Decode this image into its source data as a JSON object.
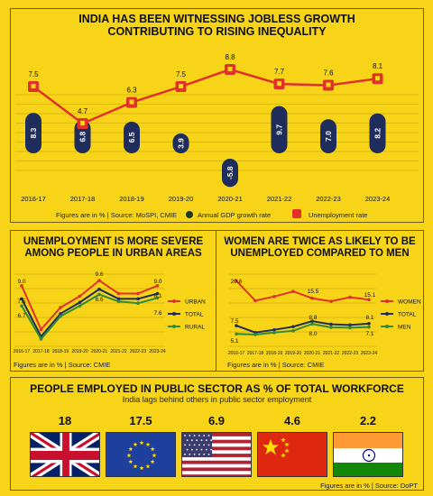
{
  "top": {
    "title_line1": "INDIA HAS BEEN WITNESSING JOBLESS GROWTH",
    "title_line2": "CONTRIBUTING TO RISING INEQUALITY",
    "source": "Figures are in % | Source: MoSPI, CMIE",
    "legend_gdp": "Annual GDP growth rate",
    "legend_unemp": "Unemployment rate"
  },
  "urban": {
    "title_line1": "UNEMPLOYMENT IS MORE SEVERE",
    "title_line2": "AMONG PEOPLE IN URBAN AREAS",
    "source": "Figures are in % | Source: CMIE"
  },
  "women": {
    "title_line1": "WOMEN ARE TWICE AS LIKELY TO BE",
    "title_line2": "UNEMPLOYED COMPARED TO MEN"
  },
  "public": {
    "title": "PEOPLE EMPLOYED IN PUBLIC SECTOR AS % OF TOTAL WORKFORCE",
    "subtitle": "India lags behind others in public sector employment",
    "source": "Figures are in % | Source: DoPT"
  },
  "chart_data": [
    {
      "type": "bar",
      "title": "INDIA HAS BEEN WITNESSING JOBLESS GROWTH CONTRIBUTING TO RISING INEQUALITY",
      "categories": [
        "2016-17",
        "2017-18",
        "2018-19",
        "2019-20",
        "2020-21",
        "2021-22",
        "2022-23",
        "2023-24"
      ],
      "series": [
        {
          "name": "Annual GDP growth rate",
          "type": "bar",
          "values": [
            8.3,
            6.8,
            6.5,
            3.9,
            -5.8,
            9.7,
            7.0,
            8.2
          ],
          "labels": [
            "8.3",
            "6.8",
            "6.5",
            "3.9",
            "-5.8",
            "9.7",
            "7.0",
            "8.2"
          ],
          "color": "#1f2d5c"
        },
        {
          "name": "Unemployment rate",
          "type": "line",
          "values": [
            7.5,
            4.7,
            6.3,
            7.5,
            8.8,
            7.7,
            7.6,
            8.1
          ],
          "labels": [
            "7.5",
            "4.7",
            "6.3",
            "7.5",
            "8.8",
            "7.7",
            "7.6",
            "8.1"
          ],
          "color": "#e0322a"
        }
      ]
    },
    {
      "type": "line",
      "x": [
        "2016-17",
        "2017-18",
        "2018-19",
        "2019-20",
        "2020-21",
        "2021-22",
        "2022-23",
        "2023-24"
      ],
      "series": [
        {
          "name": "URBAN",
          "values": [
            9.0,
            4.0,
            6.5,
            7.8,
            9.6,
            8.1,
            8.1,
            9.0
          ],
          "color": "#e0322a"
        },
        {
          "name": "TOTAL",
          "values": [
            7.5,
            3.2,
            5.8,
            7.1,
            8.6,
            7.5,
            7.5,
            8.1
          ],
          "color": "#1f2d5c"
        },
        {
          "name": "RURAL",
          "values": [
            6.7,
            2.9,
            5.5,
            6.7,
            8.0,
            7.2,
            7.0,
            7.6
          ],
          "color": "#2e8b3a"
        }
      ],
      "labels": {
        "start_top": "9.0",
        "start_mid": "7.5",
        "start_low": "6.7",
        "peak_top": "9.6",
        "peak_low": "8.6",
        "end_top": "9.0",
        "end_mid": "8.1",
        "end_low": "7.6"
      },
      "legend": "right"
    },
    {
      "type": "line",
      "x": [
        "2016-17",
        "2017-18",
        "2018-19",
        "2019-20",
        "2020-21",
        "2021-22",
        "2022-23",
        "2023-24"
      ],
      "series": [
        {
          "name": "WOMEN",
          "values": [
            20.6,
            14.8,
            16.0,
            17.5,
            15.5,
            14.6,
            15.8,
            15.1
          ],
          "color": "#e0322a"
        },
        {
          "name": "TOTAL",
          "values": [
            7.5,
            5.5,
            6.3,
            7.2,
            8.8,
            7.9,
            7.7,
            8.1
          ],
          "color": "#1f2d5c"
        },
        {
          "name": "MEN",
          "values": [
            5.1,
            4.9,
            5.5,
            6.0,
            8.0,
            7.0,
            6.9,
            7.1
          ],
          "color": "#2e8b3a"
        }
      ],
      "labels": {
        "w_start": "20.6",
        "w_mid": "15.5",
        "w_end": "15.1",
        "t_start": "7.5",
        "t_mid": "8.8",
        "t_end": "8.1",
        "m_start": "5.1",
        "m_mid": "8.0",
        "m_end": "7.1"
      },
      "legend": "right"
    },
    {
      "type": "bar",
      "title": "PEOPLE EMPLOYED IN PUBLIC SECTOR AS % OF TOTAL WORKFORCE",
      "categories": [
        "UK",
        "EU",
        "USA",
        "China",
        "India"
      ],
      "values": [
        18,
        17.5,
        6.9,
        4.6,
        2.2
      ],
      "labels": [
        "18",
        "17.5",
        "6.9",
        "4.6",
        "2.2"
      ]
    }
  ]
}
